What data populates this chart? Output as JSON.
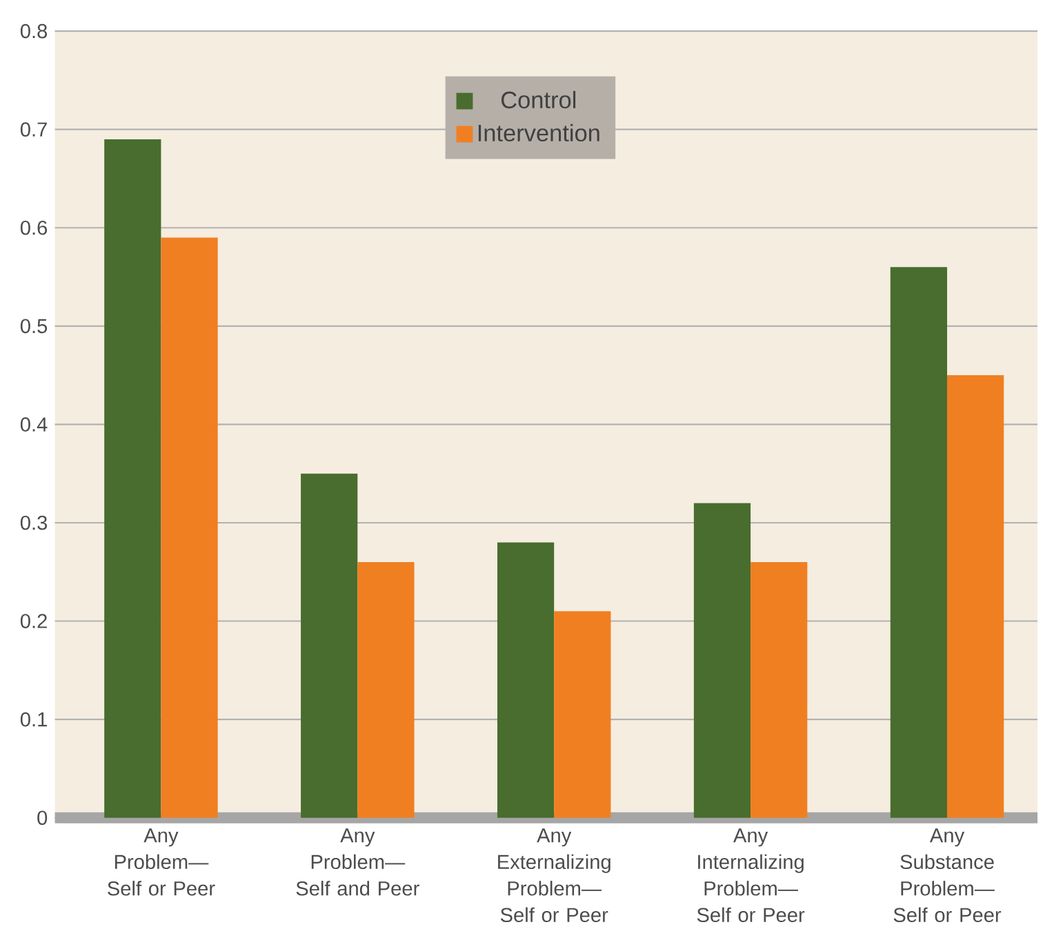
{
  "chart_data": {
    "type": "bar",
    "categories": [
      "Any Problem— Self or Peer",
      "Any Problem— Self and Peer",
      "Any Externalizing Problem— Self or Peer",
      "Any Internalizing Problem— Self or Peer",
      "Any Substance Problem— Self or Peer"
    ],
    "series": [
      {
        "name": "Control",
        "color": "#486d2e",
        "values": [
          0.69,
          0.35,
          0.28,
          0.32,
          0.56
        ]
      },
      {
        "name": "Intervention",
        "color": "#f07f22",
        "values": [
          0.59,
          0.26,
          0.21,
          0.26,
          0.45
        ]
      }
    ],
    "ylim": [
      0,
      0.8
    ],
    "yticks": [
      0,
      0.1,
      0.2,
      0.3,
      0.4,
      0.5,
      0.6,
      0.7,
      0.8
    ],
    "grid": "y",
    "legend": "top"
  }
}
